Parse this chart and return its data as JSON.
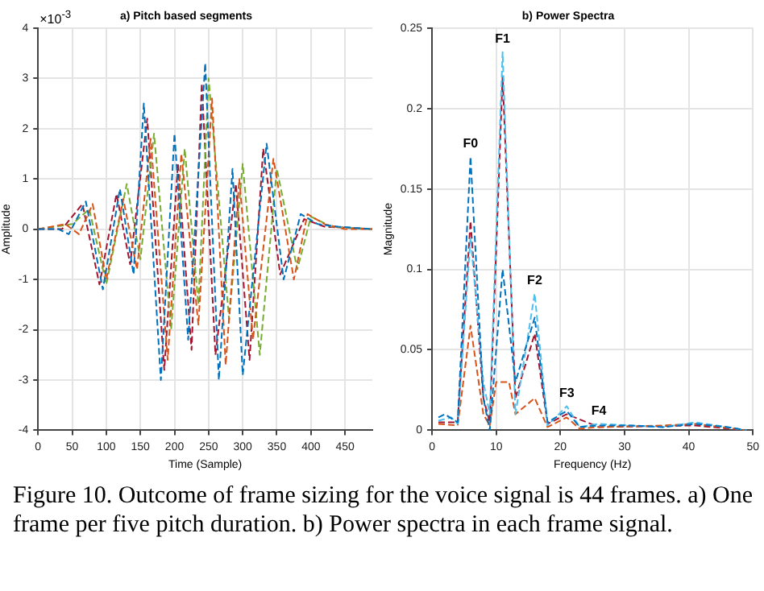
{
  "chart_data": [
    {
      "type": "line",
      "title": "a) Pitch based segments",
      "xlabel": "Time (Sample)",
      "ylabel": "Amplitude",
      "annotations": [
        "×10$^{-3}$"
      ],
      "xlim": [
        0,
        490
      ],
      "xticks": [
        0,
        50,
        100,
        150,
        200,
        250,
        300,
        350,
        400,
        450
      ],
      "ylim": [
        -4,
        4
      ],
      "yticks": [
        -4,
        -3,
        -2,
        -1,
        0,
        1,
        2,
        3,
        4
      ],
      "grid": true,
      "legend": false,
      "marker": "none",
      "line_style": "dashed",
      "series": [
        {
          "color": "#0072bd",
          "x": [
            0,
            30,
            45,
            70,
            95,
            120,
            140,
            155,
            180,
            200,
            220,
            245,
            265,
            285,
            300,
            335,
            360,
            385,
            410,
            440,
            490
          ],
          "values": [
            0,
            0,
            -0.1,
            0.55,
            -1.2,
            0.8,
            -0.9,
            2.5,
            -3.0,
            1.9,
            -2.2,
            3.3,
            -3.0,
            1.2,
            -2.9,
            1.7,
            -1.0,
            0.3,
            0.1,
            0.05,
            0
          ]
        },
        {
          "color": "#d95319",
          "x": [
            0,
            40,
            60,
            80,
            100,
            125,
            145,
            165,
            190,
            210,
            235,
            255,
            275,
            295,
            315,
            345,
            375,
            395,
            420,
            450,
            490
          ],
          "values": [
            0,
            0.1,
            -0.1,
            0.5,
            -1.0,
            0.6,
            -0.8,
            1.8,
            -2.6,
            1.5,
            -1.9,
            2.6,
            -2.7,
            1.0,
            -2.2,
            1.4,
            -1.0,
            0.3,
            0.1,
            0,
            0
          ]
        },
        {
          "color": "#77ac30",
          "x": [
            0,
            50,
            75,
            100,
            130,
            150,
            170,
            195,
            215,
            235,
            250,
            280,
            300,
            325,
            350,
            380,
            400,
            430,
            490
          ],
          "values": [
            0,
            0.1,
            0.4,
            -1.1,
            0.9,
            -0.6,
            1.9,
            -2.0,
            1.6,
            -1.5,
            3.0,
            -1.8,
            1.3,
            -2.5,
            1.2,
            -0.8,
            0.25,
            0.05,
            0
          ]
        },
        {
          "color": "#a2142f",
          "x": [
            0,
            35,
            65,
            90,
            115,
            135,
            160,
            185,
            205,
            225,
            240,
            260,
            290,
            310,
            330,
            355,
            390,
            420,
            490
          ],
          "values": [
            0,
            0,
            0.5,
            -1.1,
            0.7,
            -0.7,
            2.2,
            -2.8,
            1.3,
            -2.4,
            2.9,
            -2.5,
            0.9,
            -2.6,
            1.6,
            -0.9,
            0.2,
            0.05,
            0
          ]
        }
      ]
    },
    {
      "type": "line",
      "title": "b) Power Spectra",
      "xlabel": "Frequency (Hz)",
      "ylabel": "Magnitude",
      "xlim": [
        0,
        50
      ],
      "xticks": [
        0,
        10,
        20,
        30,
        40,
        50
      ],
      "ylim": [
        0,
        0.25
      ],
      "yticks": [
        0,
        0.05,
        0.1,
        0.15,
        0.2,
        0.25
      ],
      "grid": true,
      "legend": false,
      "marker": "none",
      "line_style": "dashed",
      "annotations": [
        {
          "text": "F0",
          "x": 6,
          "y": 0.17
        },
        {
          "text": "F1",
          "x": 11,
          "y": 0.235
        },
        {
          "text": "F2",
          "x": 16,
          "y": 0.085
        },
        {
          "text": "F3",
          "x": 21,
          "y": 0.015
        },
        {
          "text": "F4",
          "x": 26,
          "y": 0.004
        }
      ],
      "series": [
        {
          "color": "#0072bd",
          "x": [
            1,
            2,
            4,
            6,
            8,
            9,
            11,
            13,
            16,
            18,
            21,
            23,
            26,
            31,
            36,
            41,
            46,
            49
          ],
          "values": [
            0.008,
            0.01,
            0.005,
            0.17,
            0.02,
            0,
            0.1,
            0.03,
            0.07,
            0.005,
            0.012,
            0.002,
            0.003,
            0.003,
            0.002,
            0.004,
            0.002,
            0
          ]
        },
        {
          "color": "#4dbeee",
          "x": [
            1,
            3,
            4,
            6,
            8,
            9,
            11,
            13,
            16,
            18,
            21,
            23,
            26,
            31,
            36,
            41,
            46,
            49
          ],
          "values": [
            0.006,
            0.008,
            0.004,
            0.12,
            0.03,
            0.01,
            0.235,
            0.01,
            0.085,
            0.003,
            0.015,
            0.002,
            0.004,
            0.003,
            0.002,
            0.005,
            0.002,
            0
          ]
        },
        {
          "color": "#d95319",
          "x": [
            1,
            4,
            6,
            8,
            9,
            10,
            12,
            13,
            16,
            18,
            21,
            23,
            26,
            36,
            41,
            49
          ],
          "values": [
            0.004,
            0.003,
            0.065,
            0.01,
            0.003,
            0.03,
            0.03,
            0.01,
            0.02,
            0.002,
            0.008,
            0.001,
            0.002,
            0.003,
            0.004,
            0
          ]
        },
        {
          "color": "#a2142f",
          "x": [
            1,
            4,
            6,
            8,
            9,
            11,
            13,
            16,
            18,
            21,
            26,
            41,
            49
          ],
          "values": [
            0.005,
            0.005,
            0.13,
            0.02,
            0.005,
            0.22,
            0.02,
            0.06,
            0.004,
            0.01,
            0.002,
            0.003,
            0
          ]
        }
      ]
    },
    {
      "type": "other",
      "annotations": [
        "Figure 10. Outcome of frame sizing for the voice signal is 44 frames. a) One frame per five pitch duration. b) Power spectra in each frame signal."
      ]
    }
  ]
}
